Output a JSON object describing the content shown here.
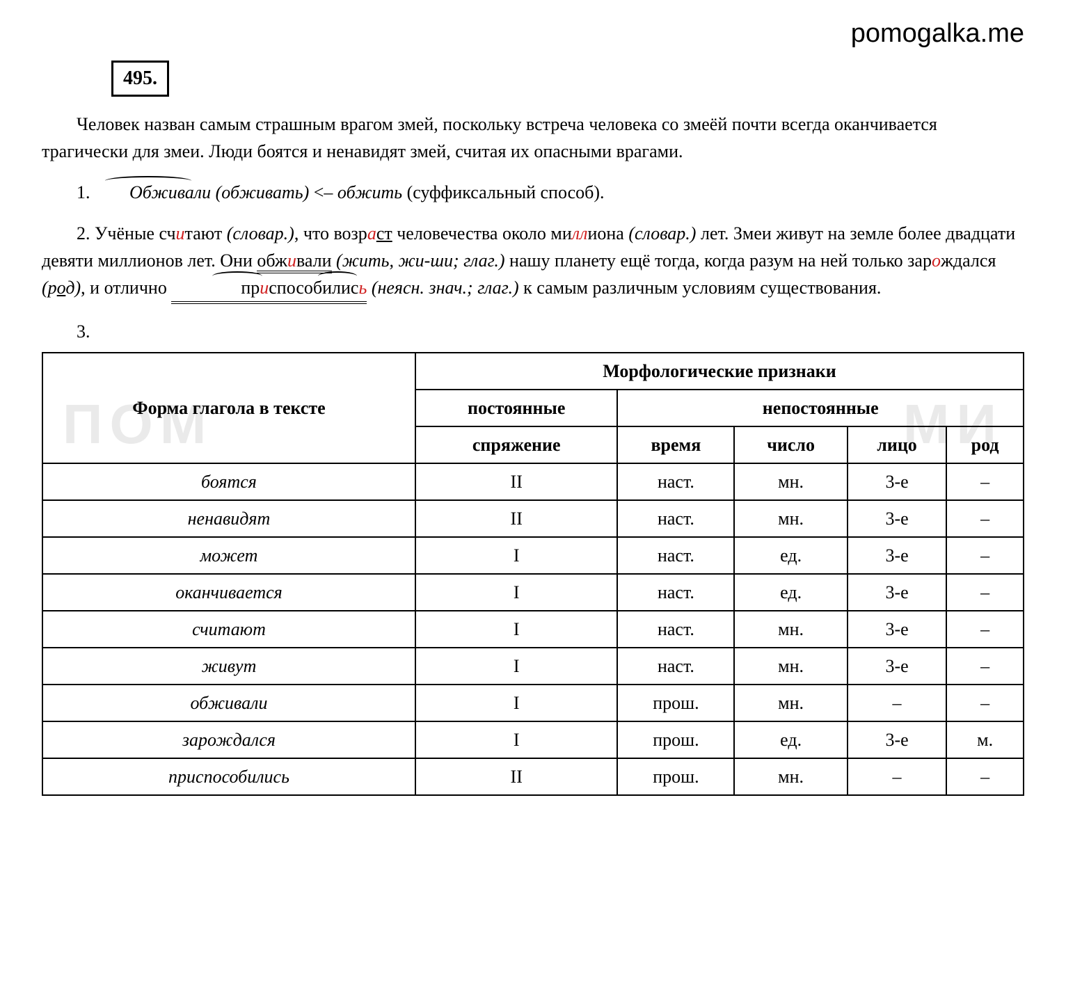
{
  "brand": "pomogalka.me",
  "exercise_number": "495.",
  "watermark_left": "ПОМ",
  "watermark_right": "МИ",
  "intro_text": "Человек назван самым страшным врагом змей, поскольку встреча человека со змеёй почти всегда оканчивается трагически для змеи. Люди боятся и ненавидят змей, считая их опасными врагами.",
  "item1_prefix": "1. ",
  "item1_word1": "Обживали (обживать)",
  "item1_arrow": " <– ",
  "item1_word2": "обжить",
  "item1_suffix": " (суффиксальный способ).",
  "item2": {
    "prefix": "2. Учёные сч",
    "r1": "и",
    "t1": "тают ",
    "slov1": "(словар.)",
    "t2": ", что возр",
    "r2": "а",
    "t3_u": "ст",
    "t3": " человечества около ми",
    "r3": "лл",
    "t4": "иона ",
    "slov2": "(словар.)",
    "t5": " лет. Змеи живут на земле более двадцати девяти миллионов лет. Они ",
    "ob1": "об",
    "ob2": "ж",
    "ob_r": "и",
    "ob3": "вали",
    "zhit": " (жить, жи-ши; глаг.)",
    "t6": " нашу планету ещё тогда, когда разум на ней только зар",
    "r4": "о",
    "t7": "ждался ",
    "rod": "(р",
    "rod_u": "о",
    "rod2": "д)",
    "t8": ", и отлично ",
    "pri1": "пр",
    "pri_r": "и",
    "pri2": "способилис",
    "pri_r2": "ь",
    "neясн": " (неясн. знач.; глаг.)",
    "t9": " к самым различным условиям существования."
  },
  "item3_label": "3.",
  "table": {
    "header_form": "Форма глагола в тексте",
    "header_morph": "Морфологические признаки",
    "header_const": "постоянные",
    "header_var": "непостоянные",
    "col_conj": "спряжение",
    "col_tense": "время",
    "col_number": "число",
    "col_person": "лицо",
    "col_gender": "род",
    "rows": [
      {
        "verb": "боятся",
        "conj": "II",
        "tense": "наст.",
        "num": "мн.",
        "pers": "3-е",
        "gen": "–"
      },
      {
        "verb": "ненавидят",
        "conj": "II",
        "tense": "наст.",
        "num": "мн.",
        "pers": "3-е",
        "gen": "–"
      },
      {
        "verb": "может",
        "conj": "I",
        "tense": "наст.",
        "num": "ед.",
        "pers": "3-е",
        "gen": "–"
      },
      {
        "verb": "оканчивается",
        "conj": "I",
        "tense": "наст.",
        "num": "ед.",
        "pers": "3-е",
        "gen": "–"
      },
      {
        "verb": "считают",
        "conj": "I",
        "tense": "наст.",
        "num": "мн.",
        "pers": "3-е",
        "gen": "–"
      },
      {
        "verb": "живут",
        "conj": "I",
        "tense": "наст.",
        "num": "мн.",
        "pers": "3-е",
        "gen": "–"
      },
      {
        "verb": "обживали",
        "conj": "I",
        "tense": "прош.",
        "num": "мн.",
        "pers": "–",
        "gen": "–"
      },
      {
        "verb": "зарождался",
        "conj": "I",
        "tense": "прош.",
        "num": "ед.",
        "pers": "3-е",
        "gen": "м."
      },
      {
        "verb": "приспособились",
        "conj": "II",
        "tense": "прош.",
        "num": "мн.",
        "pers": "–",
        "gen": "–"
      }
    ]
  }
}
